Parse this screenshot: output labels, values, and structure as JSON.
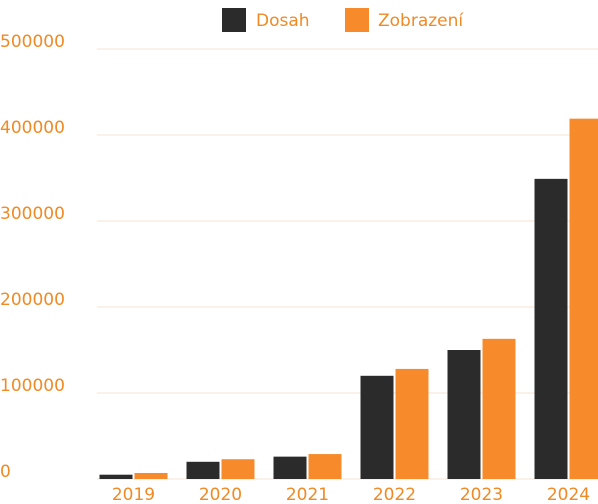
{
  "chart_data": {
    "type": "bar",
    "categories": [
      "2019",
      "2020",
      "2021",
      "2022",
      "2023",
      "2024"
    ],
    "series": [
      {
        "name": "Dosah",
        "color": "#2b2b2b",
        "values": [
          5000,
          20000,
          26000,
          120000,
          150000,
          349000
        ]
      },
      {
        "name": "Zobrazení",
        "color": "#f78b2b",
        "values": [
          7000,
          23000,
          29000,
          128000,
          163000,
          419000
        ]
      }
    ],
    "ylim": [
      0,
      500000
    ],
    "yticks": [
      0,
      100000,
      200000,
      300000,
      400000,
      500000
    ],
    "grid": true,
    "legend": "top"
  }
}
